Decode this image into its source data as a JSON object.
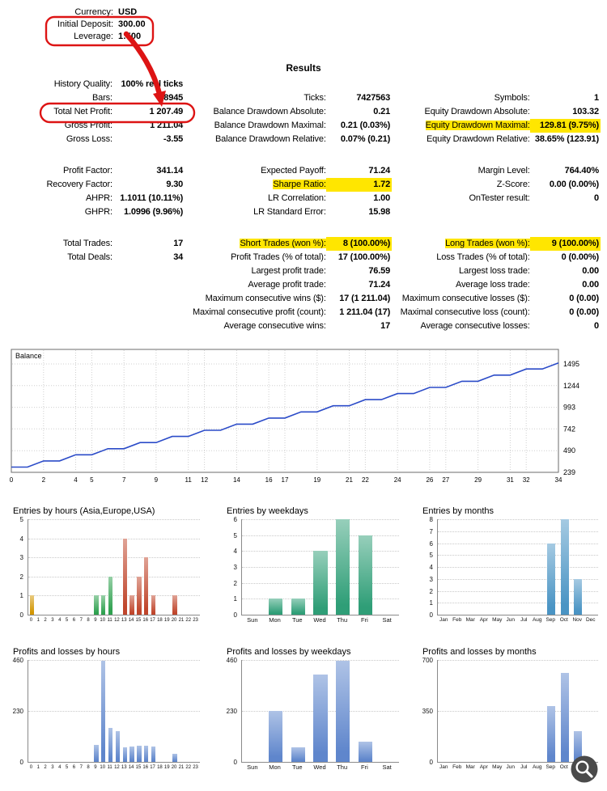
{
  "account": {
    "currency_label": "Currency:",
    "currency_value": "USD",
    "deposit_label": "Initial Deposit:",
    "deposit_value": "300.00",
    "leverage_label": "Leverage:",
    "leverage_value": "1:500"
  },
  "results_title": "Results",
  "colors": {
    "highlight": "#ffe600",
    "annotation": "#dd1414",
    "balance_line": "#2b4bc8",
    "grid": "#cfcfcf",
    "axis": "#8a8a8a",
    "zoom_bg": "#4a4a4a"
  },
  "stats_rows": [
    [
      {
        "l": "History Quality:",
        "v": "100% real ticks"
      },
      null,
      null
    ],
    [
      {
        "l": "Bars:",
        "v": "68945"
      },
      {
        "l": "Ticks:",
        "v": "7427563"
      },
      {
        "l": "Symbols:",
        "v": "1"
      }
    ],
    [
      {
        "l": "Total Net Profit:",
        "v": "1 207.49"
      },
      {
        "l": "Balance Drawdown Absolute:",
        "v": "0.21"
      },
      {
        "l": "Equity Drawdown Absolute:",
        "v": "103.32"
      }
    ],
    [
      {
        "l": "Gross Profit:",
        "v": "1 211.04"
      },
      {
        "l": "Balance Drawdown Maximal:",
        "v": "0.21 (0.03%)"
      },
      {
        "l": "Equity Drawdown Maximal:",
        "v": "129.81 (9.75%)",
        "hl": true
      }
    ],
    [
      {
        "l": "Gross Loss:",
        "v": "-3.55"
      },
      {
        "l": "Balance Drawdown Relative:",
        "v": "0.07% (0.21)"
      },
      {
        "l": "Equity Drawdown Relative:",
        "v": "38.65% (123.91)"
      }
    ],
    "gap",
    [
      {
        "l": "Profit Factor:",
        "v": "341.14"
      },
      {
        "l": "Expected Payoff:",
        "v": "71.24"
      },
      {
        "l": "Margin Level:",
        "v": "764.40%"
      }
    ],
    [
      {
        "l": "Recovery Factor:",
        "v": "9.30"
      },
      {
        "l": "Sharpe Ratio:",
        "v": "1.72",
        "hl": true
      },
      {
        "l": "Z-Score:",
        "v": "0.00 (0.00%)"
      }
    ],
    [
      {
        "l": "AHPR:",
        "v": "1.1011 (10.11%)"
      },
      {
        "l": "LR Correlation:",
        "v": "1.00"
      },
      {
        "l": "OnTester result:",
        "v": "0"
      }
    ],
    [
      {
        "l": "GHPR:",
        "v": "1.0996 (9.96%)"
      },
      {
        "l": "LR Standard Error:",
        "v": "15.98"
      },
      null
    ],
    "gap",
    [
      {
        "l": "Total Trades:",
        "v": "17"
      },
      {
        "l": "Short Trades (won %):",
        "v": "8 (100.00%)",
        "hl": true
      },
      {
        "l": "Long Trades (won %):",
        "v": "9 (100.00%)",
        "hl": true
      }
    ],
    [
      {
        "l": "Total Deals:",
        "v": "34"
      },
      {
        "l": "Profit Trades (% of total):",
        "v": "17 (100.00%)"
      },
      {
        "l": "Loss Trades (% of total):",
        "v": "0 (0.00%)"
      }
    ],
    [
      null,
      {
        "l": "Largest profit trade:",
        "v": "76.59"
      },
      {
        "l": "Largest loss trade:",
        "v": "0.00"
      }
    ],
    [
      null,
      {
        "l": "Average profit trade:",
        "v": "71.24"
      },
      {
        "l": "Average loss trade:",
        "v": "0.00"
      }
    ],
    [
      null,
      {
        "l": "Maximum consecutive wins ($):",
        "v": "17 (1 211.04)"
      },
      {
        "l": "Maximum consecutive losses ($):",
        "v": "0 (0.00)"
      }
    ],
    [
      null,
      {
        "l": "Maximal consecutive profit (count):",
        "v": "1 211.04 (17)"
      },
      {
        "l": "Maximal consecutive loss (count):",
        "v": "0 (0.00)"
      }
    ],
    [
      null,
      {
        "l": "Average consecutive wins:",
        "v": "17"
      },
      {
        "l": "Average consecutive losses:",
        "v": "0"
      }
    ]
  ],
  "chart_data": [
    {
      "id": "balance",
      "type": "line",
      "title": "Balance",
      "x_min": 0,
      "x_max": 34,
      "values": [
        300.0,
        300.0,
        371.03,
        371.03,
        442.06,
        442.06,
        513.09,
        513.09,
        584.12,
        584.12,
        655.14,
        655.14,
        726.17,
        726.17,
        797.2,
        797.2,
        868.23,
        868.23,
        939.26,
        939.26,
        1010.29,
        1010.29,
        1081.32,
        1081.32,
        1152.35,
        1152.35,
        1223.37,
        1223.37,
        1294.4,
        1294.4,
        1365.43,
        1365.43,
        1436.46,
        1436.46,
        1507.49
      ],
      "y_ticks": [
        239,
        490,
        742,
        993,
        1244,
        1495
      ],
      "x_ticks": [
        0,
        2,
        4,
        5,
        7,
        9,
        11,
        12,
        14,
        16,
        17,
        19,
        21,
        22,
        24,
        26,
        27,
        29,
        31,
        32,
        34
      ],
      "line_color": "#2b4bc8"
    },
    {
      "id": "entries-by-hours",
      "type": "bar",
      "title": "Entries by hours (Asia,Europe,USA)",
      "categories": [
        "0",
        "1",
        "2",
        "3",
        "4",
        "5",
        "6",
        "7",
        "8",
        "9",
        "10",
        "11",
        "12",
        "13",
        "14",
        "15",
        "16",
        "17",
        "18",
        "19",
        "20",
        "21",
        "22",
        "23"
      ],
      "values": [
        1,
        0,
        0,
        0,
        0,
        0,
        0,
        0,
        0,
        1,
        1,
        2,
        0,
        4,
        1,
        2,
        3,
        1,
        0,
        0,
        1,
        0,
        0,
        0
      ],
      "bar_colors": [
        "#d29500",
        null,
        null,
        null,
        null,
        null,
        null,
        null,
        null,
        "#2fa14f",
        "#2fa14f",
        "#2fa14f",
        null,
        "#c0462c",
        "#c0462c",
        "#c0462c",
        "#c0462c",
        "#c0462c",
        null,
        null,
        "#c0462c",
        null,
        null,
        null
      ],
      "ymax": 5,
      "y_ticks": [
        0,
        1,
        2,
        3,
        4,
        5
      ]
    },
    {
      "id": "entries-by-weekdays",
      "type": "bar",
      "title": "Entries by weekdays",
      "categories": [
        "Sun",
        "Mon",
        "Tue",
        "Wed",
        "Thu",
        "Fri",
        "Sat"
      ],
      "values": [
        0,
        1,
        1,
        4,
        6,
        5,
        0
      ],
      "color": "#2f9e77",
      "ymax": 6,
      "y_ticks": [
        0,
        1,
        2,
        3,
        4,
        5,
        6
      ]
    },
    {
      "id": "entries-by-months",
      "type": "bar",
      "title": "Entries by months",
      "categories": [
        "Jan",
        "Feb",
        "Mar",
        "Apr",
        "May",
        "Jun",
        "Jul",
        "Aug",
        "Sep",
        "Oct",
        "Nov",
        "Dec"
      ],
      "values": [
        0,
        0,
        0,
        0,
        0,
        0,
        0,
        0,
        6,
        8,
        3,
        0
      ],
      "color": "#4a94c4",
      "ymax": 8,
      "y_ticks": [
        0,
        1,
        2,
        3,
        4,
        5,
        6,
        7,
        8
      ]
    },
    {
      "id": "profits-by-hours",
      "type": "bar",
      "title": "Profits and losses by hours",
      "categories": [
        "0",
        "1",
        "2",
        "3",
        "4",
        "5",
        "6",
        "7",
        "8",
        "9",
        "10",
        "11",
        "12",
        "13",
        "14",
        "15",
        "16",
        "17",
        "18",
        "19",
        "20",
        "21",
        "22",
        "23"
      ],
      "values": [
        0,
        0,
        0,
        0,
        0,
        0,
        0,
        0,
        0,
        75,
        458,
        152,
        140,
        64,
        68,
        73,
        73,
        70,
        0,
        0,
        35,
        0,
        0,
        0
      ],
      "color": "#5f86cc",
      "ymax": 460,
      "y_ticks": [
        0,
        230,
        460
      ]
    },
    {
      "id": "profits-by-weekdays",
      "type": "bar",
      "title": "Profits and losses by weekdays",
      "categories": [
        "Sun",
        "Mon",
        "Tue",
        "Wed",
        "Thu",
        "Fri",
        "Sat"
      ],
      "values": [
        0,
        230,
        65,
        395,
        458,
        90,
        0
      ],
      "color": "#5f86cc",
      "ymax": 460,
      "y_ticks": [
        0,
        230,
        460
      ]
    },
    {
      "id": "profits-by-months",
      "type": "bar",
      "title": "Profits and losses by months",
      "categories": [
        "Jan",
        "Feb",
        "Mar",
        "Apr",
        "May",
        "Jun",
        "Jul",
        "Aug",
        "Sep",
        "Oct",
        "Nov",
        "Dec"
      ],
      "values": [
        0,
        0,
        0,
        0,
        0,
        0,
        0,
        0,
        383,
        611,
        213,
        0
      ],
      "color": "#5f86cc",
      "ymax": 700,
      "y_ticks": [
        0,
        350,
        700
      ]
    }
  ]
}
